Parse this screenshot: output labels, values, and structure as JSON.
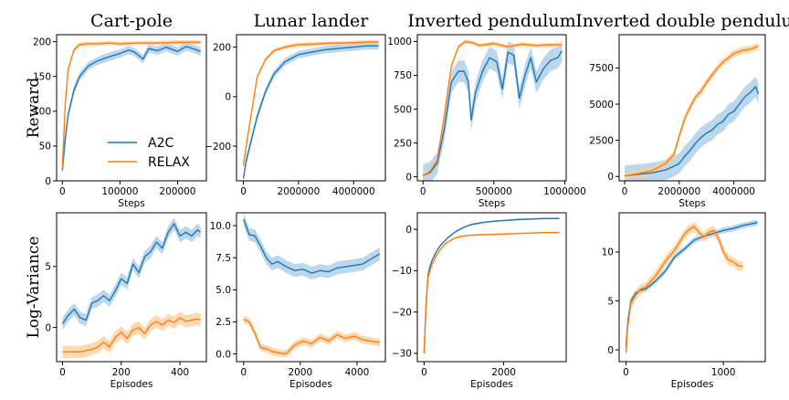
{
  "colors": {
    "a2c": "#1f77b4",
    "relax": "#ff7f0e",
    "a2c_band": "#a6c8e4",
    "relax_band": "#ffcc99"
  },
  "legend": {
    "location": "lower-right of first panel",
    "entries": [
      "A2C",
      "RELAX"
    ]
  },
  "chart_data": [
    {
      "type": "line",
      "row": 0,
      "col": 0,
      "title": "Cart-pole",
      "ylabel": "Reward",
      "xlabel": "Steps",
      "xlim": [
        -10000,
        250000
      ],
      "ylim": [
        0,
        210
      ],
      "xticks": [
        0,
        100000,
        200000
      ],
      "xtick_labels": [
        "0",
        "100000",
        "200000"
      ],
      "yticks": [
        0,
        50,
        100,
        150,
        200
      ],
      "ytick_labels": [
        "0",
        "50",
        "100",
        "150",
        "200"
      ],
      "series": [
        {
          "name": "A2C",
          "x": [
            0,
            5000,
            10000,
            20000,
            30000,
            45000,
            60000,
            80000,
            100000,
            115000,
            125000,
            140000,
            150000,
            165000,
            180000,
            200000,
            215000,
            230000,
            240000
          ],
          "y": [
            15,
            60,
            95,
            130,
            150,
            165,
            172,
            178,
            183,
            188,
            185,
            175,
            190,
            187,
            192,
            186,
            193,
            189,
            186
          ],
          "band": 6
        },
        {
          "name": "RELAX",
          "x": [
            0,
            5000,
            10000,
            20000,
            30000,
            45000,
            60000,
            80000,
            100000,
            130000,
            160000,
            200000,
            240000
          ],
          "y": [
            18,
            110,
            160,
            188,
            196,
            197,
            197,
            198,
            197,
            198,
            198,
            199,
            199
          ],
          "band": 3
        }
      ]
    },
    {
      "type": "line",
      "row": 0,
      "col": 1,
      "title": "Lunar lander",
      "ylabel": "",
      "xlabel": "",
      "xlim": [
        -250000,
        5150000
      ],
      "ylim": [
        -340,
        250
      ],
      "xticks": [
        0,
        2000000,
        4000000
      ],
      "xtick_labels": [
        "0",
        "2000000",
        "4000000"
      ],
      "yticks": [
        -200,
        0,
        200
      ],
      "ytick_labels": [
        "−200",
        "0",
        "200"
      ],
      "series": [
        {
          "name": "A2C",
          "x": [
            0,
            100000,
            300000,
            500000,
            800000,
            1100000,
            1500000,
            2000000,
            2500000,
            3000000,
            3500000,
            4000000,
            4500000,
            4900000
          ],
          "y": [
            -330,
            -260,
            -170,
            -80,
            20,
            90,
            140,
            170,
            180,
            190,
            195,
            200,
            205,
            205
          ],
          "band": 15
        },
        {
          "name": "RELAX",
          "x": [
            0,
            100000,
            300000,
            500000,
            800000,
            1100000,
            1500000,
            2000000,
            2500000,
            3000000,
            3500000,
            4000000,
            4500000,
            4900000
          ],
          "y": [
            -280,
            -200,
            -60,
            80,
            150,
            185,
            200,
            210,
            212,
            215,
            216,
            218,
            220,
            221
          ],
          "band": 8
        }
      ]
    },
    {
      "type": "line",
      "row": 0,
      "col": 2,
      "title": "Inverted pendulum",
      "ylabel": "",
      "xlabel": "Steps",
      "xlim": [
        -40000,
        1010000
      ],
      "ylim": [
        -30,
        1050
      ],
      "xticks": [
        0,
        500000,
        1000000
      ],
      "xtick_labels": [
        "0",
        "500000",
        "1000000"
      ],
      "yticks": [
        0,
        250,
        500,
        750,
        1000
      ],
      "ytick_labels": [
        "0",
        "250",
        "500",
        "750",
        "1000"
      ],
      "series": [
        {
          "name": "A2C",
          "x": [
            0,
            50000,
            100000,
            150000,
            200000,
            250000,
            290000,
            320000,
            340000,
            370000,
            420000,
            470000,
            520000,
            560000,
            600000,
            640000,
            680000,
            720000,
            760000,
            800000,
            850000,
            900000,
            950000,
            980000
          ],
          "y": [
            10,
            30,
            100,
            350,
            700,
            780,
            780,
            700,
            420,
            620,
            780,
            880,
            850,
            650,
            920,
            900,
            580,
            750,
            880,
            700,
            800,
            860,
            880,
            930
          ],
          "band": 80
        },
        {
          "name": "RELAX",
          "x": [
            0,
            50000,
            100000,
            150000,
            200000,
            250000,
            300000,
            350000,
            400000,
            500000,
            600000,
            700000,
            800000,
            900000,
            980000
          ],
          "y": [
            5,
            40,
            120,
            450,
            820,
            960,
            1000,
            990,
            970,
            985,
            960,
            980,
            970,
            975,
            975
          ],
          "band": 15
        }
      ]
    },
    {
      "type": "line",
      "row": 0,
      "col": 3,
      "title": "Inverted double pendulum",
      "ylabel": "",
      "xlabel": "Steps",
      "xlim": [
        -200000,
        5150000
      ],
      "ylim": [
        -300,
        9800
      ],
      "xticks": [
        0,
        2000000,
        4000000
      ],
      "xtick_labels": [
        "0",
        "2000000",
        "4000000"
      ],
      "yticks": [
        0,
        2500,
        5000,
        7500
      ],
      "ytick_labels": [
        "0",
        "2500",
        "5000",
        "7500"
      ],
      "series": [
        {
          "name": "A2C",
          "x": [
            0,
            500000,
            1000000,
            1500000,
            1800000,
            2000000,
            2200000,
            2400000,
            2600000,
            2800000,
            3000000,
            3200000,
            3400000,
            3600000,
            3800000,
            4000000,
            4200000,
            4400000,
            4600000,
            4800000,
            4900000
          ],
          "y": [
            50,
            150,
            250,
            450,
            700,
            900,
            1400,
            1800,
            2300,
            2700,
            3000,
            3200,
            3600,
            3800,
            4300,
            4500,
            5000,
            5500,
            5800,
            6200,
            5700
          ],
          "band": 700
        },
        {
          "name": "RELAX",
          "x": [
            0,
            500000,
            1000000,
            1500000,
            1800000,
            2000000,
            2200000,
            2400000,
            2600000,
            2800000,
            3000000,
            3200000,
            3400000,
            3600000,
            3800000,
            4000000,
            4300000,
            4600000,
            4900000
          ],
          "y": [
            50,
            200,
            400,
            900,
            1500,
            2800,
            4000,
            4800,
            5500,
            5900,
            6500,
            7000,
            7500,
            7900,
            8200,
            8500,
            8700,
            8800,
            9000
          ],
          "band": 250
        }
      ]
    },
    {
      "type": "line",
      "row": 1,
      "col": 0,
      "title": "",
      "ylabel": "Log-Variance",
      "xlabel": "Episodes",
      "xlim": [
        -20,
        490
      ],
      "ylim": [
        -2.8,
        9.4
      ],
      "xticks": [
        0,
        200,
        400
      ],
      "xtick_labels": [
        "0",
        "200",
        "400"
      ],
      "yticks": [
        0,
        5
      ],
      "ytick_labels": [
        "0",
        "5"
      ],
      "series": [
        {
          "name": "A2C",
          "x": [
            0,
            20,
            40,
            60,
            80,
            100,
            120,
            140,
            160,
            180,
            200,
            220,
            240,
            260,
            280,
            300,
            320,
            340,
            360,
            380,
            400,
            420,
            440,
            460,
            470
          ],
          "y": [
            0.3,
            1.0,
            1.5,
            0.8,
            0.6,
            2.0,
            2.2,
            2.6,
            2.2,
            3.0,
            4.0,
            3.6,
            5.2,
            4.5,
            5.8,
            6.2,
            7.0,
            6.5,
            7.8,
            8.5,
            7.5,
            7.8,
            7.5,
            8.0,
            7.8
          ],
          "band": 0.5
        },
        {
          "name": "RELAX",
          "x": [
            0,
            20,
            40,
            60,
            80,
            100,
            120,
            140,
            160,
            180,
            200,
            220,
            240,
            260,
            280,
            300,
            320,
            340,
            360,
            380,
            400,
            420,
            440,
            460,
            470
          ],
          "y": [
            -2.0,
            -2.0,
            -2.0,
            -2.0,
            -1.9,
            -1.8,
            -1.6,
            -1.2,
            -1.6,
            -0.8,
            -0.4,
            -0.9,
            -0.2,
            0.0,
            -0.5,
            0.2,
            0.5,
            0.2,
            0.6,
            0.4,
            0.8,
            0.5,
            0.6,
            0.7,
            0.6
          ],
          "band": 0.5
        }
      ]
    },
    {
      "type": "line",
      "row": 1,
      "col": 1,
      "title": "",
      "ylabel": "",
      "xlabel": "Episodes",
      "xlim": [
        -250,
        5000
      ],
      "ylim": [
        -0.6,
        11.0
      ],
      "xticks": [
        0,
        2000,
        4000
      ],
      "xtick_labels": [
        "0",
        "2000",
        "4000"
      ],
      "yticks": [
        0.0,
        2.5,
        5.0,
        7.5,
        10.0
      ],
      "ytick_labels": [
        "0.0",
        "2.5",
        "5.0",
        "7.5",
        "10.0"
      ],
      "series": [
        {
          "name": "A2C",
          "x": [
            0,
            200,
            400,
            600,
            800,
            1000,
            1200,
            1500,
            1800,
            2100,
            2400,
            2700,
            3000,
            3300,
            3600,
            3900,
            4200,
            4500,
            4800
          ],
          "y": [
            10.5,
            9.3,
            9.2,
            8.4,
            7.5,
            7.0,
            7.2,
            6.8,
            6.5,
            6.6,
            6.3,
            6.5,
            6.4,
            6.7,
            6.8,
            6.9,
            7.0,
            7.4,
            7.8
          ],
          "band": 0.5
        },
        {
          "name": "RELAX",
          "x": [
            0,
            200,
            400,
            600,
            800,
            1000,
            1200,
            1500,
            1800,
            2100,
            2400,
            2700,
            3000,
            3300,
            3600,
            3900,
            4200,
            4500,
            4800
          ],
          "y": [
            2.7,
            2.5,
            1.6,
            0.5,
            0.4,
            0.2,
            0.1,
            0.0,
            0.7,
            1.0,
            0.8,
            1.3,
            1.0,
            1.5,
            1.2,
            1.4,
            1.1,
            1.0,
            0.9
          ],
          "band": 0.3
        }
      ]
    },
    {
      "type": "line",
      "row": 1,
      "col": 2,
      "title": "",
      "ylabel": "",
      "xlabel": "Episodes",
      "xlim": [
        -170,
        3570
      ],
      "ylim": [
        -32,
        4
      ],
      "xticks": [
        0,
        2000
      ],
      "xtick_labels": [
        "0",
        "2000"
      ],
      "yticks": [
        -30,
        -20,
        -10,
        0
      ],
      "ytick_labels": [
        "−30",
        "−20",
        "−10",
        "0"
      ],
      "series": [
        {
          "name": "A2C",
          "x": [
            0,
            50,
            100,
            150,
            200,
            300,
            400,
            500,
            600,
            800,
            1000,
            1200,
            1500,
            1800,
            2100,
            2400,
            2700,
            3000,
            3400
          ],
          "y": [
            -30,
            -18,
            -11,
            -9,
            -7.5,
            -5.5,
            -4,
            -3,
            -2,
            -0.5,
            0.5,
            1.2,
            1.7,
            2.0,
            2.2,
            2.4,
            2.5,
            2.6,
            2.6
          ],
          "band": 0.2
        },
        {
          "name": "RELAX",
          "x": [
            0,
            50,
            100,
            150,
            200,
            300,
            400,
            500,
            600,
            800,
            1000,
            1200,
            1500,
            1800,
            2100,
            2400,
            2700,
            3000,
            3400
          ],
          "y": [
            -30,
            -18,
            -11.5,
            -10,
            -8.5,
            -6.5,
            -5,
            -3.8,
            -3.0,
            -2.0,
            -1.6,
            -1.4,
            -1.3,
            -1.2,
            -1.1,
            -1.0,
            -0.9,
            -0.8,
            -0.8
          ],
          "band": 0.2
        }
      ]
    },
    {
      "type": "line",
      "row": 1,
      "col": 3,
      "title": "",
      "ylabel": "",
      "xlabel": "Episodes",
      "xlim": [
        -70,
        1430
      ],
      "ylim": [
        -1.2,
        14.0
      ],
      "xticks": [
        0,
        1000
      ],
      "xtick_labels": [
        "0",
        "1000"
      ],
      "yticks": [
        0,
        5,
        10
      ],
      "ytick_labels": [
        "0",
        "5",
        "10"
      ],
      "series": [
        {
          "name": "A2C",
          "x": [
            0,
            20,
            50,
            100,
            150,
            200,
            300,
            400,
            500,
            600,
            700,
            800,
            900,
            1000,
            1100,
            1200,
            1300,
            1350
          ],
          "y": [
            0.3,
            3.0,
            5.0,
            5.8,
            6.1,
            6.2,
            7.0,
            8.0,
            9.5,
            10.3,
            11.2,
            11.6,
            11.9,
            12.2,
            12.4,
            12.7,
            12.9,
            13.0
          ],
          "band": 0.3
        },
        {
          "name": "RELAX",
          "x": [
            0,
            20,
            50,
            100,
            150,
            200,
            300,
            400,
            500,
            600,
            650,
            700,
            750,
            800,
            850,
            900,
            950,
            1000,
            1050,
            1100,
            1150,
            1200
          ],
          "y": [
            -0.3,
            2.5,
            4.8,
            5.6,
            6.2,
            6.4,
            7.5,
            9.0,
            10.2,
            11.8,
            12.3,
            12.6,
            12.0,
            11.5,
            12.0,
            12.2,
            11.4,
            10.0,
            9.2,
            9.0,
            8.6,
            8.5
          ],
          "band": 0.5
        }
      ]
    }
  ]
}
